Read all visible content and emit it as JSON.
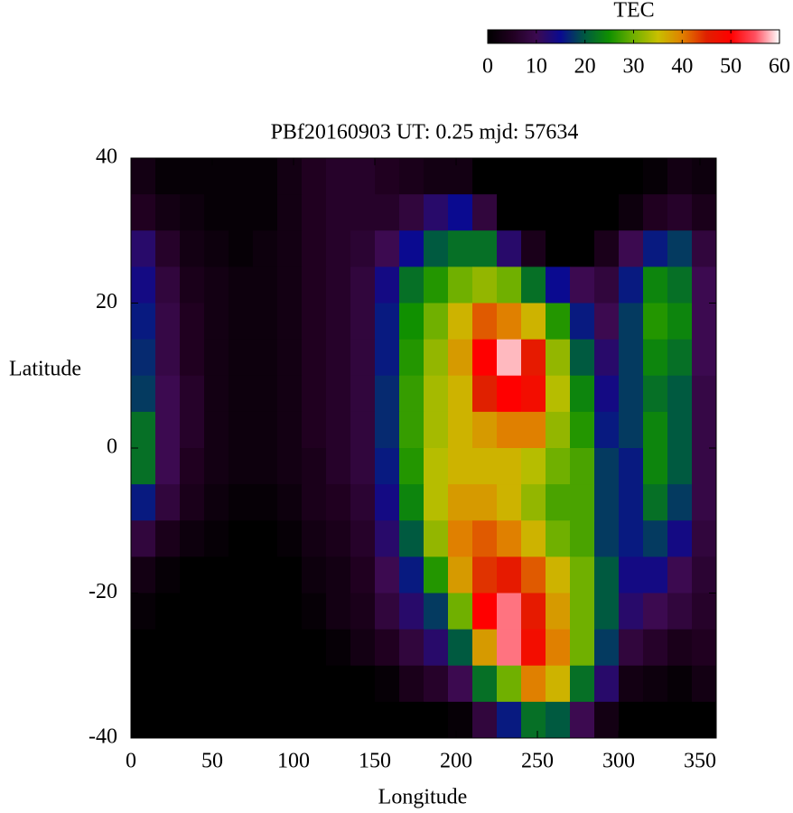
{
  "chart_data": {
    "type": "heatmap",
    "title": "PBf20160903  UT: 0.25  mjd: 57634",
    "x_label": "Longitude",
    "y_label": "Latitude",
    "colorbar_title": "TEC",
    "xlim": [
      0,
      360
    ],
    "xticks": [
      0,
      50,
      100,
      150,
      200,
      250,
      300,
      350
    ],
    "ylim": [
      -40,
      40
    ],
    "yticks": [
      -40,
      -20,
      0,
      20,
      40
    ],
    "clim": [
      0,
      60
    ],
    "cticks": [
      0,
      10,
      20,
      30,
      40,
      50,
      60
    ],
    "colors": [
      "#000000",
      "#200020",
      "#3c0a50",
      "#0a0a90",
      "#005a40",
      "#109000",
      "#70b000",
      "#c8c000",
      "#e08000",
      "#e02000",
      "#ff0000",
      "#ff5060",
      "#ffffff"
    ],
    "x": [
      7.5,
      22.5,
      37.5,
      52.5,
      67.5,
      82.5,
      97.5,
      112.5,
      127.5,
      142.5,
      157.5,
      172.5,
      187.5,
      202.5,
      217.5,
      232.5,
      247.5,
      262.5,
      277.5,
      292.5,
      307.5,
      322.5,
      337.5,
      352.5
    ],
    "y": [
      37.5,
      32.5,
      27.5,
      22.5,
      17.5,
      12.5,
      7.5,
      2.5,
      -2.5,
      -7.5,
      -12.5,
      -17.5,
      -22.5,
      -27.5,
      -32.5,
      -37.5
    ],
    "values": [
      [
        3,
        1,
        1,
        1,
        1,
        1,
        3,
        5,
        6,
        6,
        5,
        4,
        3,
        3,
        0,
        0,
        0,
        0,
        0,
        0,
        0,
        1,
        3,
        2
      ],
      [
        5,
        3,
        2,
        1,
        1,
        1,
        3,
        5,
        6,
        6,
        6,
        8,
        12,
        15,
        8,
        0,
        0,
        0,
        0,
        0,
        2,
        5,
        6,
        4
      ],
      [
        12,
        6,
        3,
        2,
        1,
        2,
        3,
        5,
        6,
        7,
        10,
        15,
        20,
        22,
        22,
        12,
        4,
        0,
        0,
        4,
        10,
        16,
        18,
        8
      ],
      [
        14,
        8,
        4,
        3,
        2,
        2,
        3,
        5,
        6,
        8,
        14,
        22,
        26,
        30,
        32,
        30,
        22,
        15,
        10,
        8,
        16,
        24,
        22,
        10
      ],
      [
        16,
        9,
        5,
        3,
        2,
        2,
        3,
        5,
        6,
        8,
        16,
        25,
        30,
        36,
        42,
        40,
        36,
        26,
        16,
        10,
        18,
        26,
        24,
        10
      ],
      [
        17,
        9,
        5,
        3,
        2,
        2,
        3,
        5,
        6,
        8,
        16,
        26,
        32,
        38,
        50,
        58,
        46,
        32,
        20,
        12,
        18,
        24,
        22,
        10
      ],
      [
        18,
        10,
        6,
        3,
        2,
        2,
        3,
        5,
        6,
        8,
        17,
        27,
        33,
        36,
        45,
        50,
        48,
        34,
        24,
        14,
        18,
        22,
        20,
        9
      ],
      [
        22,
        10,
        6,
        3,
        2,
        2,
        3,
        5,
        6,
        8,
        17,
        27,
        33,
        36,
        38,
        40,
        40,
        32,
        26,
        16,
        18,
        24,
        20,
        9
      ],
      [
        22,
        10,
        5,
        3,
        2,
        2,
        3,
        4,
        6,
        8,
        16,
        26,
        34,
        36,
        36,
        36,
        34,
        30,
        28,
        18,
        16,
        24,
        20,
        9
      ],
      [
        16,
        8,
        4,
        2,
        1,
        1,
        2,
        4,
        5,
        7,
        14,
        24,
        34,
        38,
        38,
        36,
        32,
        28,
        28,
        18,
        16,
        22,
        18,
        9
      ],
      [
        8,
        4,
        2,
        1,
        0,
        0,
        1,
        3,
        4,
        6,
        12,
        20,
        32,
        40,
        42,
        40,
        36,
        30,
        28,
        18,
        16,
        18,
        14,
        8
      ],
      [
        3,
        1,
        0,
        0,
        0,
        0,
        0,
        2,
        3,
        5,
        10,
        16,
        26,
        38,
        44,
        46,
        42,
        36,
        30,
        20,
        14,
        14,
        10,
        7
      ],
      [
        1,
        0,
        0,
        0,
        0,
        0,
        0,
        1,
        3,
        4,
        8,
        12,
        18,
        30,
        50,
        56,
        46,
        38,
        30,
        20,
        12,
        10,
        8,
        6
      ],
      [
        0,
        0,
        0,
        0,
        0,
        0,
        0,
        0,
        1,
        3,
        5,
        8,
        12,
        20,
        38,
        56,
        48,
        40,
        30,
        18,
        8,
        6,
        4,
        5
      ],
      [
        0,
        0,
        0,
        0,
        0,
        0,
        0,
        0,
        0,
        0,
        1,
        4,
        6,
        10,
        22,
        30,
        40,
        36,
        22,
        12,
        3,
        2,
        1,
        3
      ],
      [
        0,
        0,
        0,
        0,
        0,
        0,
        0,
        0,
        0,
        0,
        0,
        0,
        0,
        1,
        8,
        16,
        22,
        20,
        10,
        3,
        0,
        0,
        0,
        0
      ]
    ]
  }
}
